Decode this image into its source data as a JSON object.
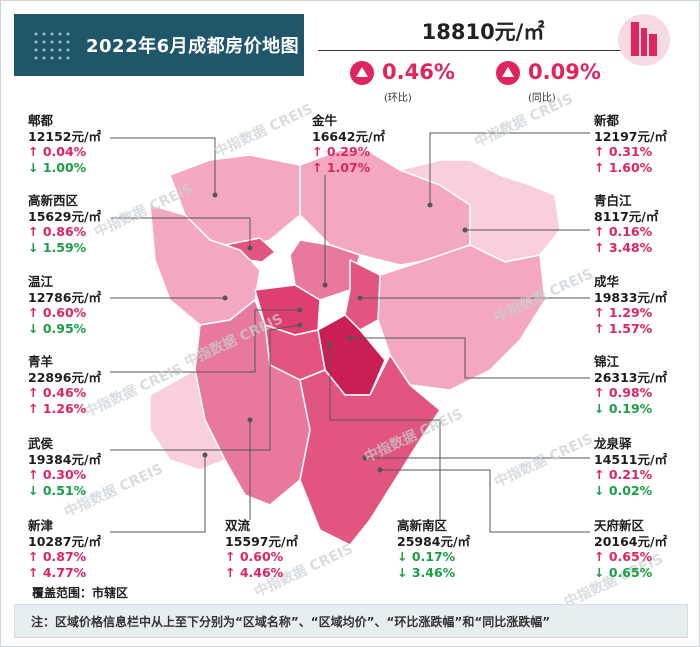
{
  "header": {
    "title": "2022年6月成都房价地图",
    "avg_price": "18810元/㎡",
    "mom_value": "0.46%",
    "mom_label": "(环比)",
    "yoy_value": "0.09%",
    "yoy_label": "(同比)"
  },
  "districts": [
    {
      "id": "pidu",
      "name": "郫都",
      "price": "12152元/㎡",
      "mom": "↑ 0.04%",
      "yoy": "↓ 1.00%",
      "mom_dir": "up",
      "yoy_dir": "down"
    },
    {
      "id": "jinniu",
      "name": "金牛",
      "price": "16642元/㎡",
      "mom": "↑ 0.29%",
      "yoy": "↑ 1.07%",
      "mom_dir": "up",
      "yoy_dir": "up"
    },
    {
      "id": "xindu",
      "name": "新都",
      "price": "12197元/㎡",
      "mom": "↑ 0.31%",
      "yoy": "↑ 1.60%",
      "mom_dir": "up",
      "yoy_dir": "up"
    },
    {
      "id": "gaoxinxi",
      "name": "高新西区",
      "price": "15629元/㎡",
      "mom": "↑ 0.86%",
      "yoy": "↓ 1.59%",
      "mom_dir": "up",
      "yoy_dir": "down"
    },
    {
      "id": "qingbaijiang",
      "name": "青白江",
      "price": "8117元/㎡",
      "mom": "↑ 0.16%",
      "yoy": "↑ 3.48%",
      "mom_dir": "up",
      "yoy_dir": "up"
    },
    {
      "id": "wenjiang",
      "name": "温江",
      "price": "12786元/㎡",
      "mom": "↑ 0.60%",
      "yoy": "↓ 0.95%",
      "mom_dir": "up",
      "yoy_dir": "down"
    },
    {
      "id": "chenghua",
      "name": "成华",
      "price": "19833元/㎡",
      "mom": "↑ 1.29%",
      "yoy": "↑ 1.57%",
      "mom_dir": "up",
      "yoy_dir": "up"
    },
    {
      "id": "qingyang",
      "name": "青羊",
      "price": "22896元/㎡",
      "mom": "↑ 0.46%",
      "yoy": "↑ 1.26%",
      "mom_dir": "up",
      "yoy_dir": "up"
    },
    {
      "id": "jinjiang",
      "name": "锦江",
      "price": "26313元/㎡",
      "mom": "↑ 0.98%",
      "yoy": "↓ 0.19%",
      "mom_dir": "up",
      "yoy_dir": "down"
    },
    {
      "id": "wuhou",
      "name": "武侯",
      "price": "19384元/㎡",
      "mom": "↑ 0.30%",
      "yoy": "↓ 0.51%",
      "mom_dir": "up",
      "yoy_dir": "down"
    },
    {
      "id": "longquanyi",
      "name": "龙泉驿",
      "price": "14511元/㎡",
      "mom": "↑ 0.21%",
      "yoy": "↓ 0.02%",
      "mom_dir": "up",
      "yoy_dir": "down"
    },
    {
      "id": "xinjin",
      "name": "新津",
      "price": "10287元/㎡",
      "mom": "↑ 0.87%",
      "yoy": "↑ 4.77%",
      "mom_dir": "up",
      "yoy_dir": "up"
    },
    {
      "id": "shuangliu",
      "name": "双流",
      "price": "15597元/㎡",
      "mom": "↑ 0.60%",
      "yoy": "↑ 4.46%",
      "mom_dir": "up",
      "yoy_dir": "up"
    },
    {
      "id": "gaoxinnan",
      "name": "高新南区",
      "price": "25984元/㎡",
      "mom": "↓ 0.17%",
      "yoy": "↓ 3.46%",
      "mom_dir": "down",
      "yoy_dir": "down"
    },
    {
      "id": "tianfu",
      "name": "天府新区",
      "price": "20164元/㎡",
      "mom": "↑ 0.65%",
      "yoy": "↓ 0.65%",
      "mom_dir": "up",
      "yoy_dir": "down"
    }
  ],
  "coverage": "覆盖范围：市辖区",
  "note": "注：区域价格信息栏中从上至下分别为“区域名称”、“区域均价”、“环比涨跌幅”和“同比涨跌幅”",
  "watermark": "中指数据 CREIS",
  "colors": {
    "up": "#e0245e",
    "down": "#1a9e46",
    "title_bg": "#1f5669"
  }
}
